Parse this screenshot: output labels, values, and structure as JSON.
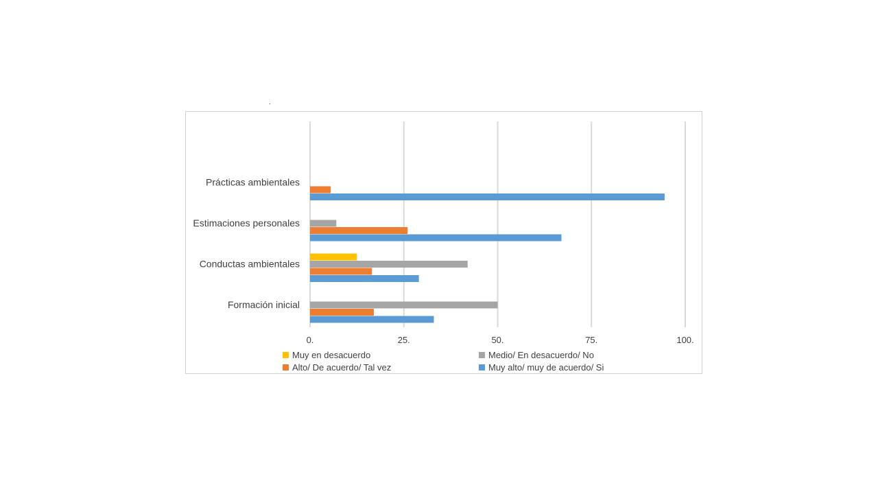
{
  "slide": {
    "dot": "."
  },
  "chart_data": {
    "type": "bar",
    "orientation": "horizontal",
    "categories": [
      "Formación inicial",
      "Conductas ambientales",
      "Estimaciones personales",
      "Prácticas ambientales"
    ],
    "series": [
      {
        "name": "Muy en desacuerdo",
        "color": "#FFC000",
        "values": [
          0,
          12.5,
          0,
          0
        ]
      },
      {
        "name": "Medio/ En desacuerdo/ No",
        "color": "#A5A5A5",
        "values": [
          50,
          42,
          7,
          0
        ]
      },
      {
        "name": "Alto/ De acuerdo/ Tal vez",
        "color": "#ED7D31",
        "values": [
          17,
          16.5,
          26,
          5.5
        ]
      },
      {
        "name": "Muy alto/ muy de acuerdo/ Si",
        "color": "#5B9BD5",
        "values": [
          33,
          29,
          67,
          94.5
        ]
      }
    ],
    "xlim": [
      0,
      100
    ],
    "xticks": [
      0,
      25,
      50,
      75,
      100
    ],
    "xtick_labels": [
      "0.",
      "25.",
      "50.",
      "75.",
      "100."
    ],
    "grid": "vertical",
    "legend_position": "bottom",
    "title": "",
    "xlabel": "",
    "ylabel": ""
  }
}
